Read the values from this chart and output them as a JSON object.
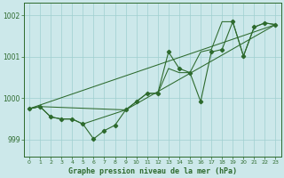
{
  "title": "Graphe pression niveau de la mer (hPa)",
  "background_color": "#cce8ea",
  "grid_color": "#9fcfcf",
  "line_color": "#2d6a2d",
  "xlim": [
    -0.5,
    23.5
  ],
  "ylim": [
    998.6,
    1002.3
  ],
  "yticks": [
    999,
    1000,
    1001,
    1002
  ],
  "ytick_labels": [
    "999",
    "1000",
    "1001",
    "1002"
  ],
  "xticks": [
    0,
    1,
    2,
    3,
    4,
    5,
    6,
    7,
    8,
    9,
    10,
    11,
    12,
    13,
    14,
    15,
    16,
    17,
    18,
    19,
    20,
    21,
    22,
    23
  ],
  "main_x": [
    0,
    1,
    2,
    3,
    4,
    5,
    6,
    7,
    8,
    9,
    10,
    11,
    12,
    13,
    14,
    15,
    16,
    17,
    18,
    19,
    20,
    21,
    22,
    23
  ],
  "main_y": [
    999.75,
    999.8,
    999.55,
    999.5,
    999.5,
    999.38,
    999.02,
    999.22,
    999.35,
    999.72,
    999.92,
    1000.12,
    1000.12,
    1001.12,
    1000.72,
    1000.62,
    999.92,
    1001.12,
    1001.18,
    1001.85,
    1001.02,
    1001.72,
    1001.82,
    1001.78
  ],
  "line2_x": [
    0,
    23
  ],
  "line2_y": [
    999.75,
    1001.78
  ],
  "line3_x": [
    0,
    1,
    9,
    23
  ],
  "line3_y": [
    999.75,
    999.8,
    999.72,
    1001.78
  ],
  "line4_x": [
    0,
    1,
    2,
    3,
    4,
    5,
    9,
    10,
    11,
    12,
    13,
    14,
    15,
    16,
    17,
    18,
    19,
    20,
    21,
    22,
    23
  ],
  "line4_y": [
    999.75,
    999.8,
    999.55,
    999.5,
    999.5,
    999.38,
    999.72,
    999.92,
    1000.12,
    1000.12,
    1000.72,
    1000.62,
    1000.62,
    1001.12,
    1001.18,
    1001.85,
    1001.85,
    1001.02,
    1001.72,
    1001.82,
    1001.78
  ]
}
